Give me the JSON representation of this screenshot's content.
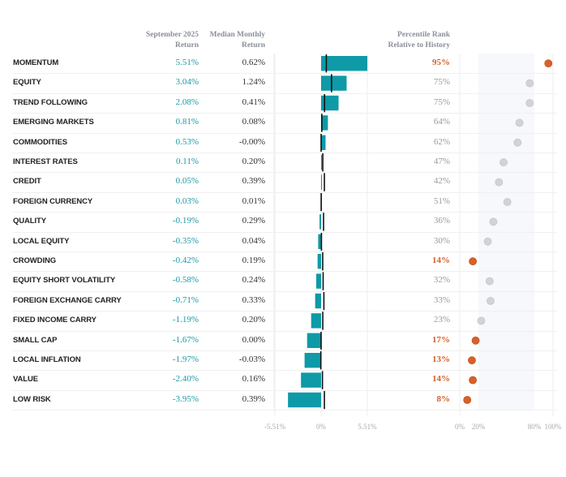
{
  "headers": {
    "september_return": [
      "September 2025",
      "Return"
    ],
    "median_monthly_return": [
      "Median Monthly",
      "Return"
    ],
    "percentile_rank": [
      "Percentile Rank",
      "Relative to History"
    ]
  },
  "colors": {
    "bar": "#0e9aa7",
    "median_line": "#111111",
    "sep_text": "#1a9aa5",
    "highlight": "#d9602a",
    "dot_gray": "#d3d3d6",
    "band": "#f6f8fb"
  },
  "chart_data": {
    "type": "bar",
    "title": "",
    "xlabel": "",
    "ylabel": "",
    "categories": [
      "MOMENTUM",
      "EQUITY",
      "TREND FOLLOWING",
      "EMERGING MARKETS",
      "COMMODITIES",
      "INTEREST RATES",
      "CREDIT",
      "FOREIGN CURRENCY",
      "QUALITY",
      "LOCAL EQUITY",
      "CROWDING",
      "EQUITY SHORT VOLATILITY",
      "FOREIGN EXCHANGE CARRY",
      "FIXED INCOME CARRY",
      "SMALL CAP",
      "LOCAL INFLATION",
      "VALUE",
      "LOW RISK"
    ],
    "series": [
      {
        "name": "September 2025 Return (%)",
        "values": [
          5.51,
          3.04,
          2.08,
          0.81,
          0.53,
          0.11,
          0.05,
          0.03,
          -0.19,
          -0.35,
          -0.42,
          -0.58,
          -0.71,
          -1.19,
          -1.67,
          -1.97,
          -2.4,
          -3.95
        ]
      },
      {
        "name": "Median Monthly Return (%)",
        "values": [
          0.62,
          1.24,
          0.41,
          0.08,
          -0.0,
          0.2,
          0.39,
          0.01,
          0.29,
          0.04,
          0.19,
          0.24,
          0.33,
          0.2,
          0.0,
          -0.03,
          0.16,
          0.39
        ]
      },
      {
        "name": "Percentile Rank Relative to History (%)",
        "values": [
          95,
          75,
          75,
          64,
          62,
          47,
          42,
          51,
          36,
          30,
          14,
          32,
          33,
          23,
          17,
          13,
          14,
          8
        ]
      }
    ],
    "display": {
      "sep": [
        "5.51%",
        "3.04%",
        "2.08%",
        "0.81%",
        "0.53%",
        "0.11%",
        "0.05%",
        "0.03%",
        "-0.19%",
        "-0.35%",
        "-0.42%",
        "-0.58%",
        "-0.71%",
        "-1.19%",
        "-1.67%",
        "-1.97%",
        "-2.40%",
        "-3.95%"
      ],
      "median": [
        "0.62%",
        "1.24%",
        "0.41%",
        "0.08%",
        "-0.00%",
        "0.20%",
        "0.39%",
        "0.01%",
        "0.29%",
        "0.04%",
        "0.19%",
        "0.24%",
        "0.33%",
        "0.20%",
        "0.00%",
        "-0.03%",
        "0.16%",
        "0.39%"
      ],
      "pct": [
        "95%",
        "75%",
        "75%",
        "64%",
        "62%",
        "47%",
        "42%",
        "51%",
        "36%",
        "30%",
        "14%",
        "32%",
        "33%",
        "23%",
        "17%",
        "13%",
        "14%",
        "8%"
      ]
    },
    "return_axis": {
      "range": [
        -5.51,
        5.51
      ],
      "ticks": [
        "-5.51%",
        "0%",
        "5.51%"
      ]
    },
    "percentile_axis": {
      "range": [
        0,
        100
      ],
      "ticks": [
        "0%",
        "20%",
        "80%",
        "100%"
      ],
      "band": [
        20,
        80
      ],
      "highlight_below": 20,
      "highlight_above": 80
    },
    "grid": true,
    "legend": "none"
  }
}
